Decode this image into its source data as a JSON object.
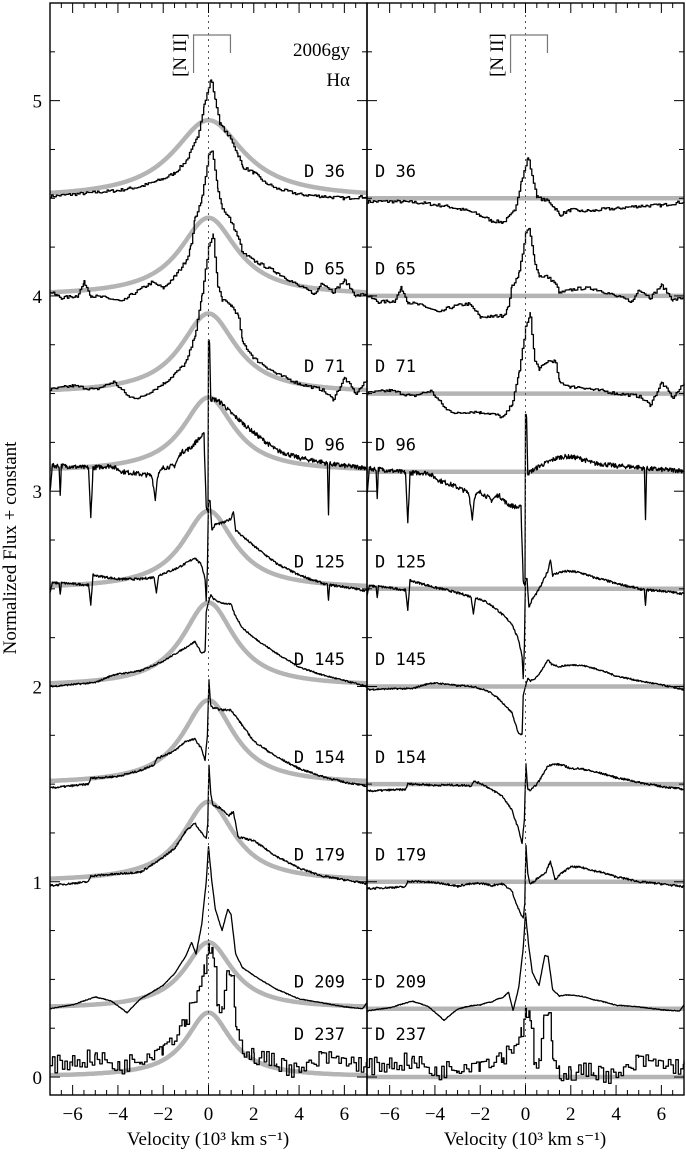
{
  "chart_data": {
    "type": "line",
    "object_label": "2006gy",
    "line_label": "Hα",
    "nii_label": "[N II]",
    "nii_velocities": [
      -0.66,
      0.97
    ],
    "xlabel": "Velocity (10³ km s⁻¹)",
    "ylabel": "Normalized Flux + constant",
    "xlim": [
      -7,
      7
    ],
    "ylim": [
      -0.092,
      5.5
    ],
    "xticks": [
      -6,
      -4,
      -2,
      0,
      2,
      4,
      6
    ],
    "xtick_labels": [
      "−6",
      "−4",
      "−2",
      "0",
      "2",
      "4",
      "6"
    ],
    "yticks": [
      0,
      1,
      2,
      3,
      4,
      5
    ],
    "ytick_labels": [
      "0",
      "1",
      "2",
      "3",
      "4",
      "5"
    ],
    "colors": {
      "spectrum": "#000000",
      "fit": "#b4b4b4",
      "zero_line": "#555555"
    },
    "series": [
      {
        "label": "D 36",
        "baseline": 4.5,
        "fit": {
          "amplitude": 0.4,
          "width": 1.9
        },
        "style": "step",
        "noise": 0.008,
        "points": [
          [
            -7,
            4.51
          ],
          [
            -6,
            4.52
          ],
          [
            -5,
            4.53
          ],
          [
            -4,
            4.54
          ],
          [
            -3,
            4.56
          ],
          [
            -2,
            4.6
          ],
          [
            -1.5,
            4.63
          ],
          [
            -1,
            4.69
          ],
          [
            -0.5,
            4.81
          ],
          [
            -0.2,
            4.98
          ],
          [
            0.1,
            5.11
          ],
          [
            0.3,
            5.0
          ],
          [
            0.5,
            4.88
          ],
          [
            1,
            4.8
          ],
          [
            1.3,
            4.72
          ],
          [
            1.5,
            4.66
          ],
          [
            2,
            4.63
          ],
          [
            2.5,
            4.58
          ],
          [
            3,
            4.55
          ],
          [
            4,
            4.52
          ],
          [
            5,
            4.51
          ],
          [
            6,
            4.5
          ],
          [
            7,
            4.51
          ]
        ]
      },
      {
        "label": "D 65",
        "baseline": 4.0,
        "fit": {
          "amplitude": 0.4,
          "width": 1.55
        },
        "style": "step",
        "noise": 0.008,
        "points": [
          [
            -7,
            4.02
          ],
          [
            -6.5,
            3.99
          ],
          [
            -5.8,
            4.0
          ],
          [
            -5.5,
            4.07
          ],
          [
            -5.2,
            4.0
          ],
          [
            -4.5,
            3.99
          ],
          [
            -3.8,
            3.97
          ],
          [
            -3.5,
            4.0
          ],
          [
            -2.5,
            4.07
          ],
          [
            -2,
            4.04
          ],
          [
            -1.5,
            4.1
          ],
          [
            -1,
            4.18
          ],
          [
            -0.8,
            4.25
          ],
          [
            -0.6,
            4.4
          ],
          [
            -0.3,
            4.5
          ],
          [
            0,
            4.72
          ],
          [
            0.15,
            4.74
          ],
          [
            0.4,
            4.55
          ],
          [
            0.6,
            4.45
          ],
          [
            0.9,
            4.4
          ],
          [
            1.3,
            4.3
          ],
          [
            1.5,
            4.22
          ],
          [
            2,
            4.18
          ],
          [
            3,
            4.12
          ],
          [
            4,
            4.05
          ],
          [
            4.7,
            4.01
          ],
          [
            5,
            4.07
          ],
          [
            5.5,
            4.02
          ],
          [
            6,
            4.08
          ],
          [
            6.5,
            4.0
          ],
          [
            7,
            4.01
          ]
        ]
      },
      {
        "label": "D 71",
        "baseline": 3.5,
        "fit": {
          "amplitude": 0.41,
          "width": 1.5
        },
        "style": "step",
        "noise": 0.008,
        "points": [
          [
            -7,
            3.52
          ],
          [
            -6,
            3.54
          ],
          [
            -5,
            3.52
          ],
          [
            -4.2,
            3.56
          ],
          [
            -3.5,
            3.48
          ],
          [
            -3,
            3.48
          ],
          [
            -2,
            3.55
          ],
          [
            -1.5,
            3.6
          ],
          [
            -1,
            3.66
          ],
          [
            -0.6,
            3.8
          ],
          [
            -0.3,
            4.0
          ],
          [
            0,
            4.25
          ],
          [
            0.2,
            4.31
          ],
          [
            0.4,
            4.05
          ],
          [
            0.6,
            3.98
          ],
          [
            1,
            3.95
          ],
          [
            1.3,
            3.9
          ],
          [
            1.5,
            3.76
          ],
          [
            2,
            3.68
          ],
          [
            3,
            3.6
          ],
          [
            4,
            3.55
          ],
          [
            5,
            3.52
          ],
          [
            5.5,
            3.47
          ],
          [
            6,
            3.58
          ],
          [
            6.5,
            3.5
          ],
          [
            7,
            3.57
          ]
        ]
      },
      {
        "label": "D 96",
        "baseline": 3.1,
        "fit": {
          "amplitude": 0.38,
          "width": 1.4
        },
        "style": "line",
        "noise": 0.012,
        "points": [
          [
            -7,
            3.0
          ],
          [
            -6.9,
            3.13
          ],
          [
            -6.6,
            3.13
          ],
          [
            -6.55,
            2.98
          ],
          [
            -6.5,
            3.13
          ],
          [
            -5.3,
            3.12
          ],
          [
            -5.2,
            2.86
          ],
          [
            -5.1,
            3.12
          ],
          [
            -4.3,
            3.13
          ],
          [
            -3.8,
            3.1
          ],
          [
            -2.5,
            3.08
          ],
          [
            -2.35,
            2.96
          ],
          [
            -2.25,
            3.08
          ],
          [
            -2,
            3.12
          ],
          [
            -1.5,
            3.13
          ],
          [
            -1.2,
            3.2
          ],
          [
            -0.8,
            3.22
          ],
          [
            -0.5,
            3.26
          ],
          [
            -0.2,
            3.29
          ],
          [
            -0.1,
            2.92
          ],
          [
            -0.02,
            2.9
          ],
          [
            0.0,
            3.77
          ],
          [
            0.05,
            3.76
          ],
          [
            0.1,
            3.47
          ],
          [
            0.3,
            3.47
          ],
          [
            0.6,
            3.45
          ],
          [
            1,
            3.4
          ],
          [
            1.5,
            3.35
          ],
          [
            2,
            3.3
          ],
          [
            3,
            3.21
          ],
          [
            4,
            3.17
          ],
          [
            5,
            3.15
          ],
          [
            5.25,
            3.14
          ],
          [
            5.3,
            2.89
          ],
          [
            5.35,
            3.14
          ],
          [
            6,
            3.13
          ],
          [
            7,
            3.12
          ]
        ]
      },
      {
        "label": "D 125",
        "baseline": 2.5,
        "fit": {
          "amplitude": 0.4,
          "width": 1.4
        },
        "style": "line",
        "noise": 0.006,
        "points": [
          [
            -7,
            2.48
          ],
          [
            -6.9,
            2.53
          ],
          [
            -6.6,
            2.53
          ],
          [
            -6.55,
            2.47
          ],
          [
            -6.5,
            2.53
          ],
          [
            -5.3,
            2.52
          ],
          [
            -5.2,
            2.42
          ],
          [
            -5.1,
            2.57
          ],
          [
            -4,
            2.55
          ],
          [
            -3,
            2.55
          ],
          [
            -2.4,
            2.56
          ],
          [
            -2.3,
            2.48
          ],
          [
            -2.2,
            2.57
          ],
          [
            -1.5,
            2.6
          ],
          [
            -1,
            2.63
          ],
          [
            -0.6,
            2.66
          ],
          [
            -0.3,
            2.62
          ],
          [
            -0.15,
            2.55
          ],
          [
            -0.1,
            2.44
          ],
          [
            -0.05,
            2.6
          ],
          [
            0,
            2.95
          ],
          [
            0.07,
            2.95
          ],
          [
            0.15,
            2.8
          ],
          [
            0.3,
            2.83
          ],
          [
            0.7,
            2.84
          ],
          [
            1.0,
            2.86
          ],
          [
            1.1,
            2.9
          ],
          [
            1.2,
            2.8
          ],
          [
            2,
            2.72
          ],
          [
            3,
            2.63
          ],
          [
            4,
            2.57
          ],
          [
            5,
            2.53
          ],
          [
            5.25,
            2.52
          ],
          [
            5.3,
            2.44
          ],
          [
            5.35,
            2.52
          ],
          [
            6,
            2.51
          ],
          [
            7,
            2.49
          ]
        ]
      },
      {
        "label": "D 145",
        "baseline": 2.0,
        "fit": {
          "amplitude": 0.43,
          "width": 1.4
        },
        "style": "line",
        "noise": 0.004,
        "points": [
          [
            -7,
            2.0
          ],
          [
            -6,
            2.01
          ],
          [
            -5,
            2.02
          ],
          [
            -4.2,
            2.06
          ],
          [
            -3,
            2.08
          ],
          [
            -2,
            2.13
          ],
          [
            -1,
            2.2
          ],
          [
            -0.6,
            2.23
          ],
          [
            -0.3,
            2.17
          ],
          [
            -0.15,
            2.18
          ],
          [
            -0.1,
            2.38
          ],
          [
            0,
            2.43
          ],
          [
            0.1,
            2.47
          ],
          [
            0.2,
            2.45
          ],
          [
            0.5,
            2.43
          ],
          [
            1,
            2.42
          ],
          [
            1.15,
            2.37
          ],
          [
            1.5,
            2.3
          ],
          [
            2,
            2.25
          ],
          [
            3,
            2.17
          ],
          [
            4,
            2.1
          ],
          [
            5,
            2.06
          ],
          [
            6,
            2.03
          ],
          [
            7,
            2.0
          ]
        ]
      },
      {
        "label": "D 154",
        "baseline": 1.5,
        "fit": {
          "amplitude": 0.43,
          "width": 1.4
        },
        "style": "line",
        "noise": 0.005,
        "points": [
          [
            -7,
            1.48
          ],
          [
            -5.3,
            1.5
          ],
          [
            -5.2,
            1.53
          ],
          [
            -4,
            1.54
          ],
          [
            -3,
            1.57
          ],
          [
            -2.4,
            1.6
          ],
          [
            -2.3,
            1.63
          ],
          [
            -1.5,
            1.67
          ],
          [
            -1,
            1.72
          ],
          [
            -0.6,
            1.73
          ],
          [
            -0.3,
            1.68
          ],
          [
            -0.15,
            1.62
          ],
          [
            -0.05,
            1.75
          ],
          [
            0.02,
            2.03
          ],
          [
            0.1,
            1.9
          ],
          [
            0.2,
            1.89
          ],
          [
            0.6,
            1.88
          ],
          [
            1,
            1.88
          ],
          [
            1.5,
            1.8
          ],
          [
            2,
            1.72
          ],
          [
            3,
            1.64
          ],
          [
            4,
            1.58
          ],
          [
            5,
            1.54
          ],
          [
            6,
            1.51
          ],
          [
            7,
            1.49
          ]
        ]
      },
      {
        "label": "D 179",
        "baseline": 1.0,
        "fit": {
          "amplitude": 0.41,
          "width": 1.4
        },
        "style": "line",
        "noise": 0.005,
        "points": [
          [
            -7,
            0.98
          ],
          [
            -5.3,
            1.0
          ],
          [
            -5.2,
            1.03
          ],
          [
            -4,
            1.04
          ],
          [
            -3,
            1.05
          ],
          [
            -2.3,
            1.1
          ],
          [
            -1.5,
            1.17
          ],
          [
            -1,
            1.26
          ],
          [
            -0.6,
            1.3
          ],
          [
            -0.3,
            1.25
          ],
          [
            -0.1,
            1.22
          ],
          [
            -0.03,
            1.3
          ],
          [
            0.02,
            1.6
          ],
          [
            0.1,
            1.45
          ],
          [
            0.2,
            1.39
          ],
          [
            0.5,
            1.38
          ],
          [
            0.9,
            1.34
          ],
          [
            1.1,
            1.36
          ],
          [
            1.3,
            1.23
          ],
          [
            2,
            1.21
          ],
          [
            3,
            1.13
          ],
          [
            4,
            1.07
          ],
          [
            5,
            1.03
          ],
          [
            6,
            1.01
          ],
          [
            7,
            0.99
          ]
        ]
      },
      {
        "label": "D 209",
        "baseline": 0.35,
        "fit": {
          "amplitude": 0.34,
          "width": 1.3
        },
        "style": "line",
        "noise": 0.002,
        "points": [
          [
            -7,
            0.35
          ],
          [
            -6,
            0.37
          ],
          [
            -5,
            0.41
          ],
          [
            -4.3,
            0.39
          ],
          [
            -3.6,
            0.33
          ],
          [
            -3,
            0.4
          ],
          [
            -2,
            0.47
          ],
          [
            -1.5,
            0.53
          ],
          [
            -1,
            0.62
          ],
          [
            -0.75,
            0.69
          ],
          [
            -0.55,
            0.63
          ],
          [
            -0.3,
            0.78
          ],
          [
            -0.1,
            1.0
          ],
          [
            0.0,
            1.18
          ],
          [
            0.15,
            1.0
          ],
          [
            0.3,
            0.86
          ],
          [
            0.6,
            0.75
          ],
          [
            0.85,
            0.86
          ],
          [
            1.0,
            0.83
          ],
          [
            1.2,
            0.63
          ],
          [
            1.5,
            0.56
          ],
          [
            2,
            0.52
          ],
          [
            3,
            0.45
          ],
          [
            4,
            0.4
          ],
          [
            5,
            0.38
          ],
          [
            6,
            0.36
          ],
          [
            6.8,
            0.35
          ],
          [
            7,
            0.38
          ]
        ]
      },
      {
        "label": "D 237",
        "baseline": 0.0,
        "fit": {
          "amplitude": 0.33,
          "width": 1.2
        },
        "style": "step",
        "noise": 0.045,
        "points": [
          [
            -7,
            0.06
          ],
          [
            -6,
            0.08
          ],
          [
            -5,
            0.1
          ],
          [
            -4,
            0.05
          ],
          [
            -3,
            0.1
          ],
          [
            -2,
            0.16
          ],
          [
            -1.5,
            0.22
          ],
          [
            -1,
            0.3
          ],
          [
            -0.5,
            0.45
          ],
          [
            -0.2,
            0.55
          ],
          [
            0,
            0.69
          ],
          [
            0.2,
            0.6
          ],
          [
            0.4,
            0.35
          ],
          [
            0.6,
            0.35
          ],
          [
            0.8,
            0.5
          ],
          [
            1.0,
            0.52
          ],
          [
            1.2,
            0.3
          ],
          [
            1.5,
            0.15
          ],
          [
            2,
            0.1
          ],
          [
            3,
            0.08
          ],
          [
            4,
            0.02
          ],
          [
            5,
            0.1
          ],
          [
            6,
            0.08
          ],
          [
            7,
            0.06
          ]
        ]
      }
    ]
  }
}
